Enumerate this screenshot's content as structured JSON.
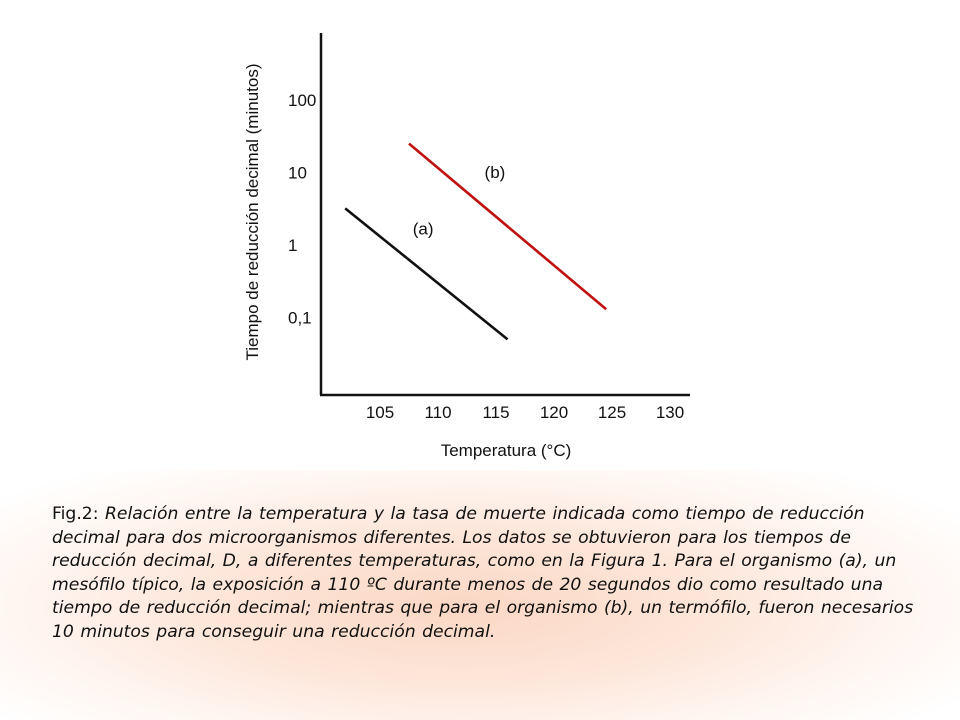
{
  "chart_data": {
    "type": "line",
    "title": "",
    "xlabel": "Temperatura (°C)",
    "ylabel": "Tiempo de reducción decimal (minutos)",
    "y_scale": "log",
    "xlim": [
      100,
      132
    ],
    "ylim": [
      0.035,
      300
    ],
    "x_ticks": [
      {
        "value": 105,
        "label": "105"
      },
      {
        "value": 110,
        "label": "110"
      },
      {
        "value": 115,
        "label": "115"
      },
      {
        "value": 120,
        "label": "120"
      },
      {
        "value": 125,
        "label": "125"
      },
      {
        "value": 130,
        "label": "130"
      }
    ],
    "y_ticks": [
      {
        "value": 100,
        "label": "100"
      },
      {
        "value": 10,
        "label": "10"
      },
      {
        "value": 1,
        "label": "1"
      },
      {
        "value": 0.1,
        "label": "0,1"
      }
    ],
    "grid": false,
    "series": [
      {
        "name": "(a)",
        "color": "#111111",
        "x": [
          102,
          116
        ],
        "y": [
          3.2,
          0.05
        ]
      },
      {
        "name": "(b)",
        "color": "#c0110f",
        "x": [
          107.5,
          124.5
        ],
        "y": [
          25,
          0.13
        ]
      }
    ]
  },
  "caption": {
    "prefix": "Fig.2: ",
    "text": "Relación entre la temperatura y la tasa de muerte indicada como tiempo de reducción decimal para dos microorganismos diferentes. Los datos se obtuvieron para los tiempos de reducción decimal, D, a diferentes temperaturas, como en la Figura 1. Para el organismo (a), un mesófilo típico, la exposición a 110 ºC durante menos de 20 segundos dio como resultado una tiempo de reducción decimal; mientras que para el organismo (b), un termófilo, fueron necesarios 10 minutos para conseguir una reducción decimal."
  }
}
